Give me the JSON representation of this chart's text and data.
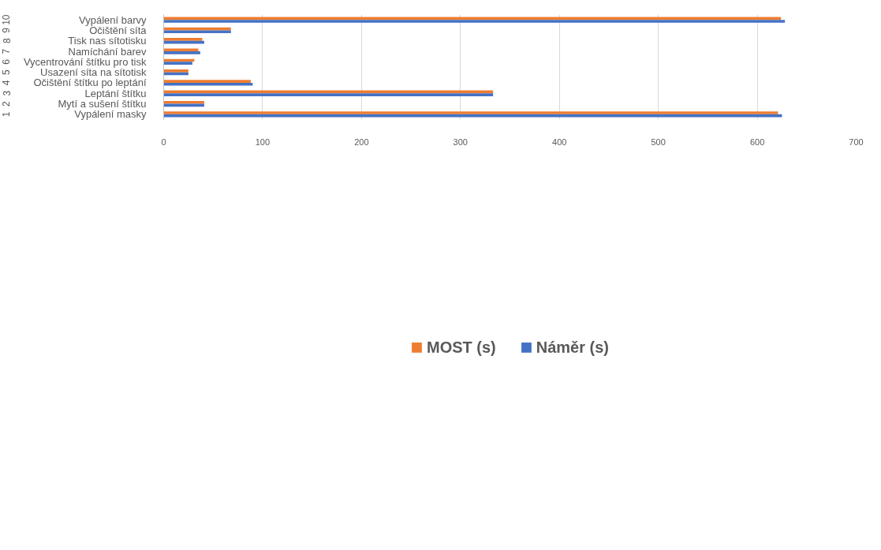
{
  "chart_data": {
    "type": "bar",
    "orientation": "horizontal",
    "categories": [
      "Vypálení barvy",
      "Očištění síta",
      "Tisk nas sítotisku",
      "Namíchání barev",
      "Vycentrování štítku pro tisk",
      "Usazení síta na sítotisk",
      "Očištění štítku po leptání",
      "Leptání štítku",
      "Mytí a sušení štítku",
      "Vypálení masky"
    ],
    "series": [
      {
        "name": "MOST (s)",
        "color": "#ed7d31",
        "values": [
          624,
          68,
          39,
          35,
          31,
          25,
          88,
          333,
          41,
          621
        ]
      },
      {
        "name": "Náměr (s)",
        "color": "#4472c4",
        "values": [
          628,
          68,
          41,
          37,
          29,
          25,
          90,
          333,
          41,
          625
        ]
      }
    ],
    "annotations": [
      "10",
      "9",
      "8",
      "7",
      "6",
      "5",
      "4",
      "3",
      "2",
      "1"
    ],
    "xlim": [
      0,
      700
    ],
    "xticks": [
      0,
      100,
      200,
      300,
      400,
      500,
      600,
      700
    ],
    "grid": "x",
    "legend": "bottom"
  }
}
